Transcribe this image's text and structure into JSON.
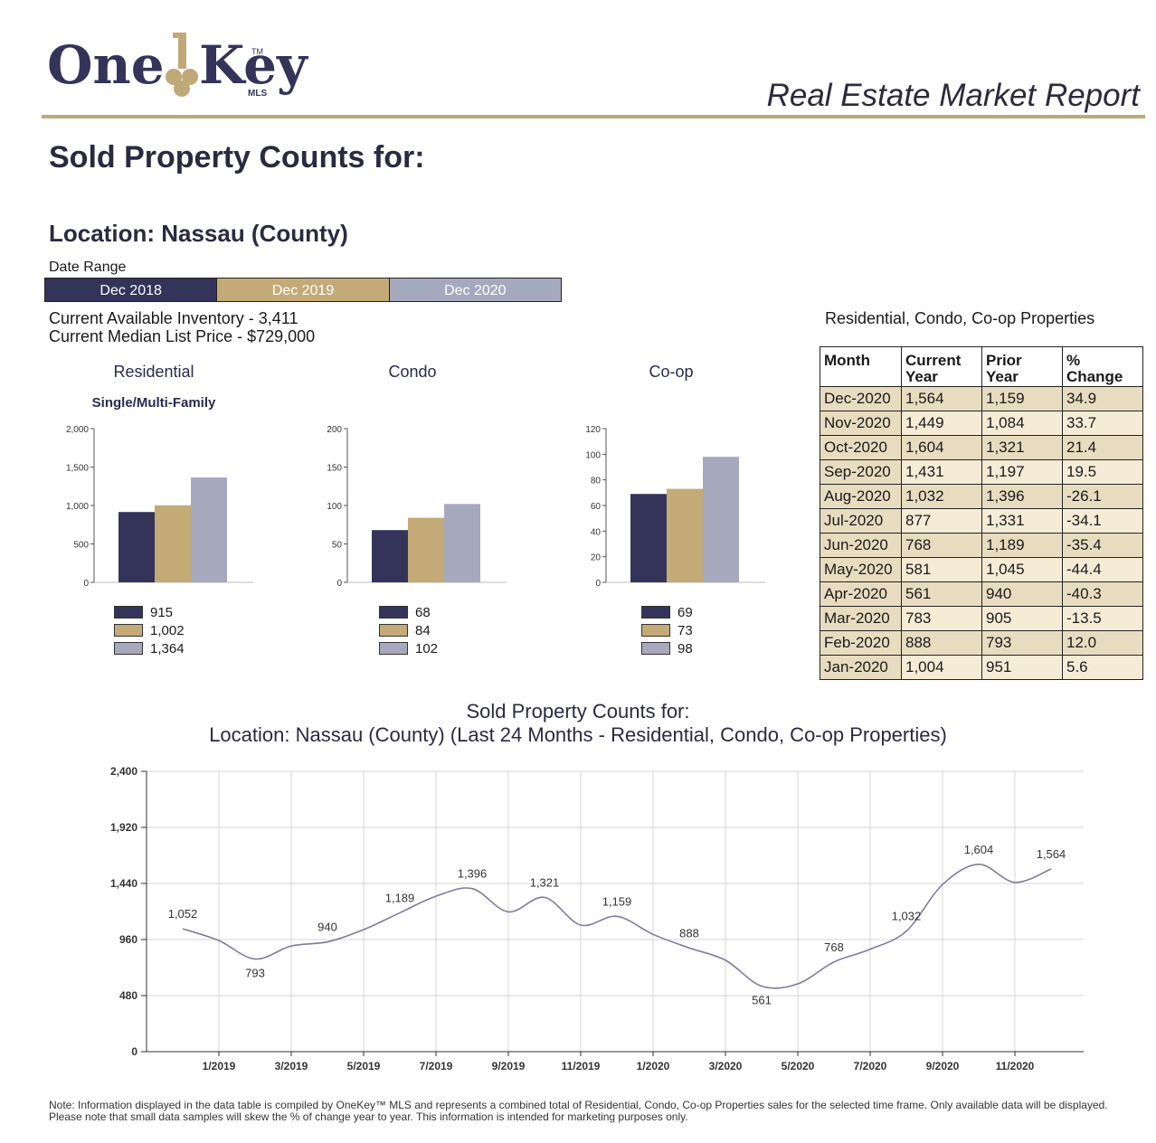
{
  "header": {
    "logo_text": "One Key",
    "logo_sub": "MLS",
    "logo_tm": "TM",
    "report_title": "Real Estate Market Report"
  },
  "main_title": "Sold Property Counts for:",
  "location": "Location: Nassau (County)",
  "date_range": {
    "label": "Date Range",
    "periods": [
      "Dec 2018",
      "Dec 2019",
      "Dec 2020"
    ]
  },
  "inventory": "Current Available Inventory - 3,411",
  "median_price": "Current Median List Price - $729,000",
  "colors": {
    "y2018": "#34345a",
    "y2019": "#c3aa77",
    "y2020": "#a6a9bd",
    "line": "#7b7d99",
    "gold": "#bfa978"
  },
  "bar_charts": {
    "residential": {
      "title": "Residential",
      "subtitle": "Single/Multi-Family",
      "legend": [
        "915",
        "1,002",
        "1,364"
      ]
    },
    "condo": {
      "title": "Condo",
      "legend": [
        "68",
        "84",
        "102"
      ]
    },
    "coop": {
      "title": "Co-op",
      "legend": [
        "69",
        "73",
        "98"
      ]
    }
  },
  "table": {
    "caption": "Residential, Condo, Co-op Properties",
    "headers": {
      "month": "Month",
      "current_1": "Current",
      "current_2": "Year",
      "prior_1": "Prior",
      "prior_2": "Year",
      "change_1": "%",
      "change_2": "Change"
    },
    "rows": [
      [
        "Dec-2020",
        "1,564",
        "1,159",
        "34.9"
      ],
      [
        "Nov-2020",
        "1,449",
        "1,084",
        "33.7"
      ],
      [
        "Oct-2020",
        "1,604",
        "1,321",
        "21.4"
      ],
      [
        "Sep-2020",
        "1,431",
        "1,197",
        "19.5"
      ],
      [
        "Aug-2020",
        "1,032",
        "1,396",
        "-26.1"
      ],
      [
        "Jul-2020",
        "877",
        "1,331",
        "-34.1"
      ],
      [
        "Jun-2020",
        "768",
        "1,189",
        "-35.4"
      ],
      [
        "May-2020",
        "581",
        "1,045",
        "-44.4"
      ],
      [
        "Apr-2020",
        "561",
        "940",
        "-40.3"
      ],
      [
        "Mar-2020",
        "783",
        "905",
        "-13.5"
      ],
      [
        "Feb-2020",
        "888",
        "793",
        "12.0"
      ],
      [
        "Jan-2020",
        "1,004",
        "951",
        "5.6"
      ]
    ]
  },
  "line_chart": {
    "title_line1": "Sold Property Counts for:",
    "title_line2": "Location: Nassau (County) (Last 24 Months - Residential, Condo, Co-op Properties)"
  },
  "footnote": "Note: Information displayed in the data table is compiled by OneKey™ MLS and represents a combined total of Residential, Condo, Co-op Properties sales for the selected time frame. Only available data will be displayed. Please note that small data samples will skew the % of change year to year. This information is intended for marketing purposes only.",
  "chart_data": [
    {
      "type": "bar",
      "title": "Residential",
      "subtitle": "Single/Multi-Family",
      "categories": [
        "Dec 2018",
        "Dec 2019",
        "Dec 2020"
      ],
      "values": [
        915,
        1002,
        1364
      ],
      "yticks": [
        "0",
        "500",
        "1,000",
        "1,500",
        "2,000"
      ],
      "ylim": [
        0,
        2000
      ]
    },
    {
      "type": "bar",
      "title": "Condo",
      "categories": [
        "Dec 2018",
        "Dec 2019",
        "Dec 2020"
      ],
      "values": [
        68,
        84,
        102
      ],
      "yticks": [
        "0",
        "50",
        "100",
        "150",
        "200"
      ],
      "ylim": [
        0,
        200
      ]
    },
    {
      "type": "bar",
      "title": "Co-op",
      "categories": [
        "Dec 2018",
        "Dec 2019",
        "Dec 2020"
      ],
      "values": [
        69,
        73,
        98
      ],
      "yticks": [
        "0",
        "20",
        "40",
        "60",
        "80",
        "100",
        "120"
      ],
      "ylim": [
        0,
        120
      ]
    },
    {
      "type": "line",
      "title": "Sold Property Counts for:",
      "subtitle": "Location: Nassau (County) (Last 24 Months - Residential, Condo, Co-op Properties)",
      "x": [
        "12/2018",
        "1/2019",
        "2/2019",
        "3/2019",
        "4/2019",
        "5/2019",
        "6/2019",
        "7/2019",
        "8/2019",
        "9/2019",
        "10/2019",
        "11/2019",
        "12/2019",
        "1/2020",
        "2/2020",
        "3/2020",
        "4/2020",
        "5/2020",
        "6/2020",
        "7/2020",
        "8/2020",
        "9/2020",
        "10/2020",
        "11/2020",
        "12/2020"
      ],
      "values": [
        1052,
        951,
        793,
        905,
        940,
        1045,
        1189,
        1331,
        1396,
        1197,
        1321,
        1084,
        1159,
        1004,
        888,
        783,
        561,
        581,
        768,
        877,
        1032,
        1431,
        1604,
        1449,
        1564
      ],
      "point_labels": {
        "0": "1,052",
        "2": "793",
        "4": "940",
        "6": "1,189",
        "8": "1,396",
        "10": "1,321",
        "12": "1,159",
        "14": "888",
        "16": "561",
        "18": "768",
        "20": "1,032",
        "22": "1,604",
        "24": "1,564"
      },
      "xticks": [
        "1/2019",
        "3/2019",
        "5/2019",
        "7/2019",
        "9/2019",
        "11/2019",
        "1/2020",
        "3/2020",
        "5/2020",
        "7/2020",
        "9/2020",
        "11/2020"
      ],
      "yticks": [
        "0",
        "480",
        "960",
        "1,440",
        "1,920",
        "2,400"
      ],
      "ylim": [
        0,
        2400
      ],
      "grid": true
    }
  ]
}
